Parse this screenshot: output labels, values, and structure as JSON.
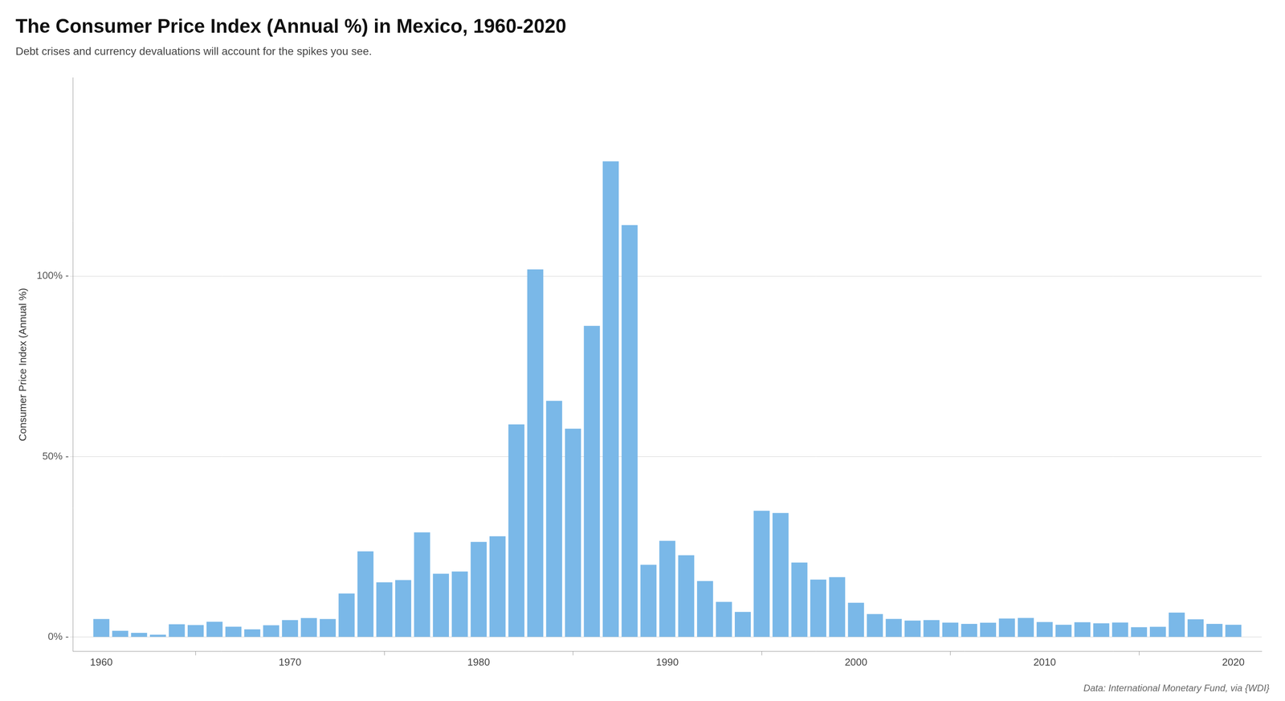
{
  "chart_data": {
    "type": "bar",
    "title": "The Consumer Price Index (Annual %) in Mexico, 1960-2020",
    "subtitle": "Debt crises and currency devaluations will account for the spikes you see.",
    "ylabel": "Consumer Price Index (Annual %)",
    "caption": "Data: International Monetary Fund, via {WDI}",
    "x": [
      1960,
      1961,
      1962,
      1963,
      1964,
      1965,
      1966,
      1967,
      1968,
      1969,
      1970,
      1971,
      1972,
      1973,
      1974,
      1975,
      1976,
      1977,
      1978,
      1979,
      1980,
      1981,
      1982,
      1983,
      1984,
      1985,
      1986,
      1987,
      1988,
      1989,
      1990,
      1991,
      1992,
      1993,
      1994,
      1995,
      1996,
      1997,
      1998,
      1999,
      2000,
      2001,
      2002,
      2003,
      2004,
      2005,
      2006,
      2007,
      2008,
      2009,
      2010,
      2011,
      2012,
      2013,
      2014,
      2015,
      2016,
      2017,
      2018,
      2019,
      2020
    ],
    "values": [
      4.99,
      1.72,
      1.15,
      0.65,
      3.52,
      3.32,
      4.23,
      2.85,
      2.14,
      3.26,
      4.69,
      5.27,
      4.98,
      12.05,
      23.75,
      15.17,
      15.77,
      29.01,
      17.53,
      18.17,
      26.35,
      27.92,
      58.92,
      101.88,
      65.45,
      57.75,
      86.23,
      131.83,
      114.16,
      20.01,
      26.65,
      22.66,
      15.51,
      9.75,
      6.97,
      35.0,
      34.38,
      20.63,
      15.93,
      16.59,
      9.49,
      6.37,
      5.03,
      4.55,
      4.69,
      3.99,
      3.63,
      3.96,
      5.12,
      5.3,
      4.16,
      3.41,
      4.11,
      3.8,
      4.02,
      2.72,
      2.82,
      6.77,
      4.9,
      3.64,
      3.4
    ],
    "color": "#7ab8e8",
    "xlim": [
      1958.5,
      2021.5
    ],
    "xticks": [
      1960,
      1970,
      1980,
      1990,
      2000,
      2010,
      2020
    ],
    "ylim": [
      -4,
      155
    ],
    "yticks": [
      {
        "value": 0,
        "label": "0% -"
      },
      {
        "value": 50,
        "label": "50% -"
      },
      {
        "value": 100,
        "label": "100% -"
      }
    ],
    "grid": true
  }
}
